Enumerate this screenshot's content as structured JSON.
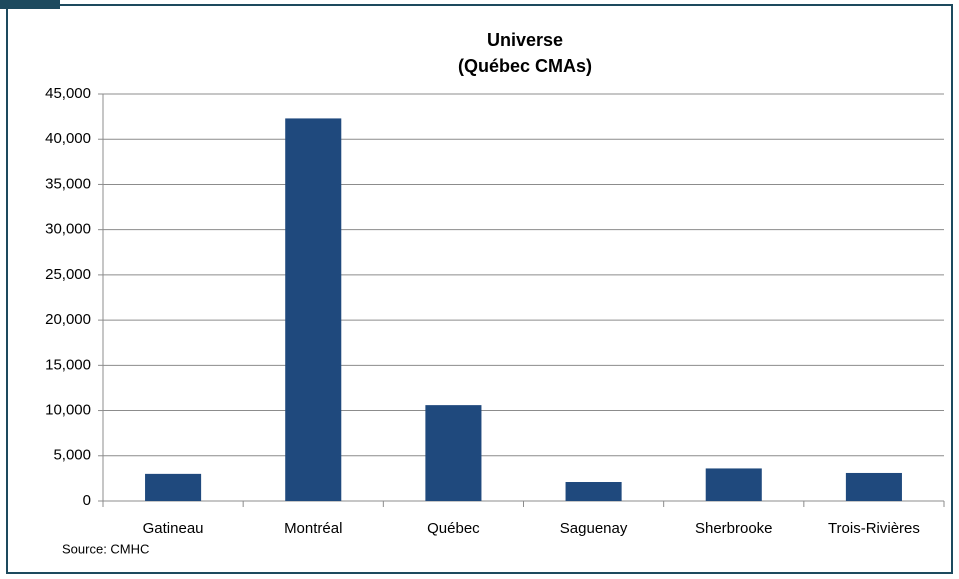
{
  "chart_data": {
    "type": "bar",
    "title": "Universe",
    "subtitle": "(Québec CMAs)",
    "categories": [
      "Gatineau",
      "Montréal",
      "Québec",
      "Saguenay",
      "Sherbrooke",
      "Trois-Rivières"
    ],
    "values": [
      3000,
      42300,
      10600,
      2100,
      3600,
      3100
    ],
    "color": "#1f497d",
    "ylim": [
      0,
      45000
    ],
    "yticks": [
      0,
      {
        "value": 5000,
        "label": "5,000"
      },
      {
        "value": 10000,
        "label": "10,000"
      },
      {
        "value": 15000,
        "label": "15,000"
      },
      {
        "value": 20000,
        "label": "20,000"
      },
      {
        "value": 25000,
        "label": "25,000"
      },
      {
        "value": 30000,
        "label": "30,000"
      },
      {
        "value": 35000,
        "label": "35,000"
      },
      {
        "value": 40000,
        "label": "40,000"
      },
      {
        "value": 45000,
        "label": "45,000"
      }
    ],
    "grid": true,
    "source": "Source: CMHC"
  }
}
